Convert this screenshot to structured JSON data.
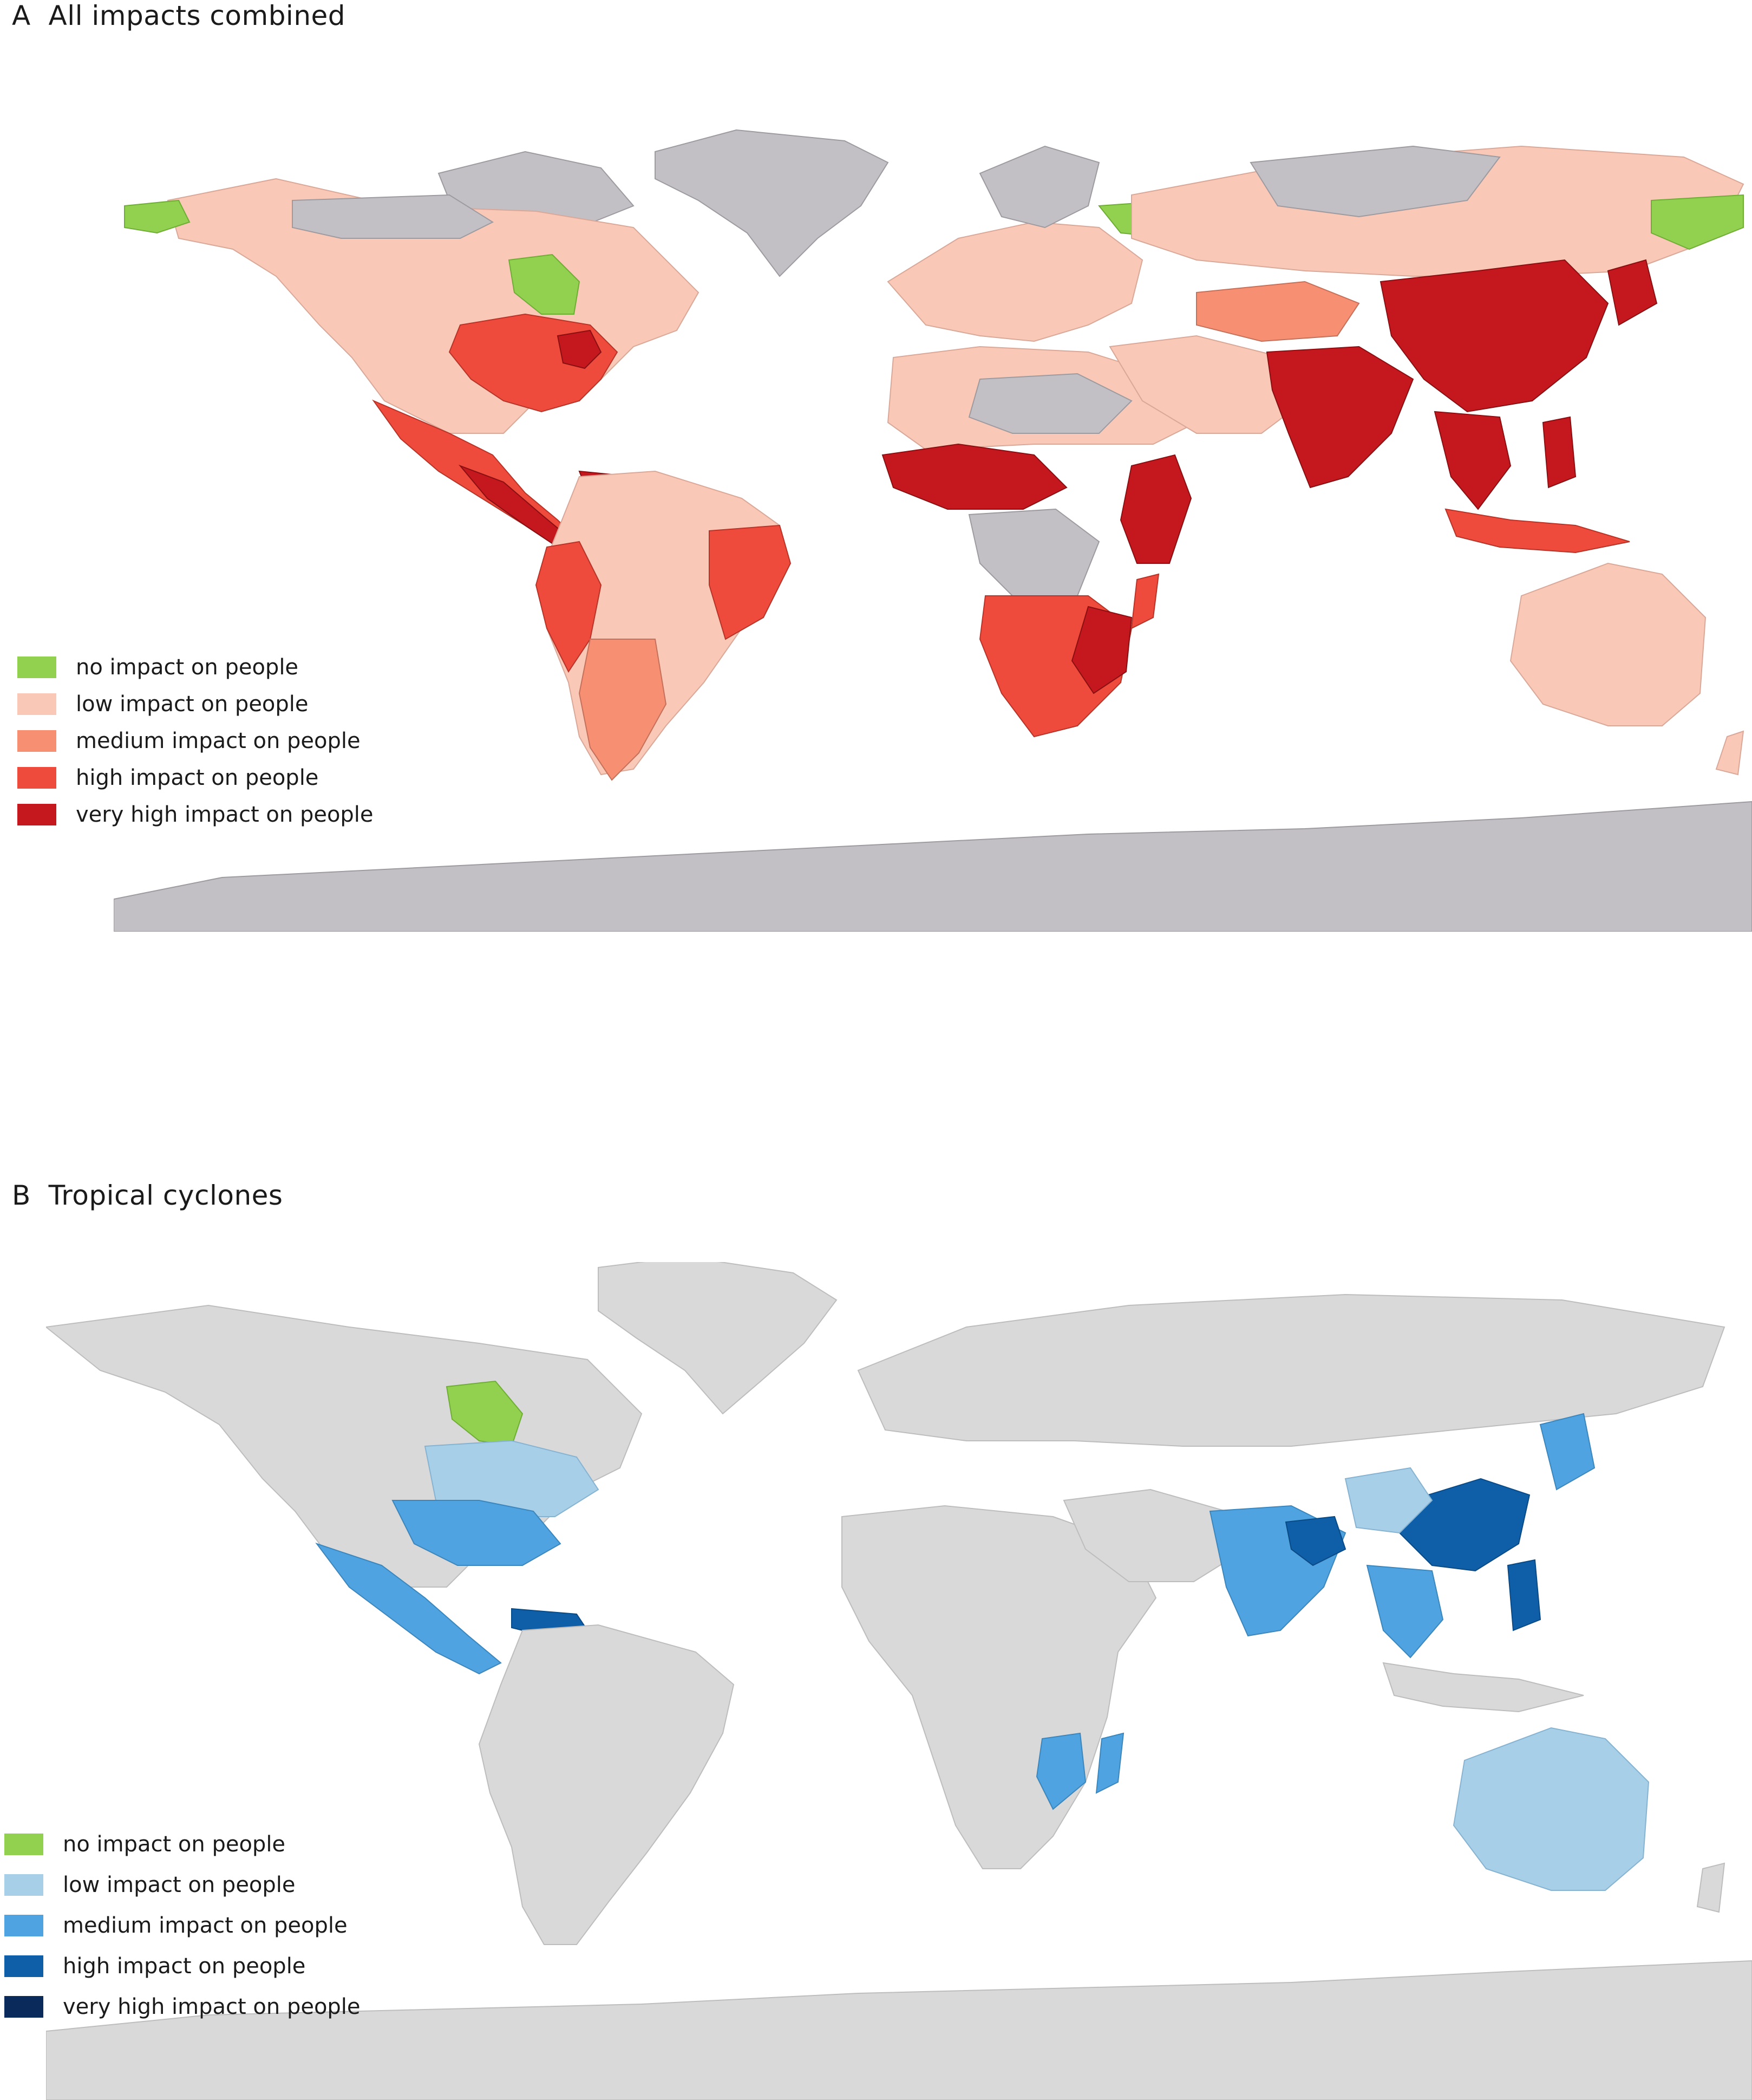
{
  "panels": [
    {
      "letter": "A",
      "title": "All impacts combined",
      "legend": [
        {
          "label": "no impact on people",
          "color": "#92d050"
        },
        {
          "label": "low impact on people",
          "color": "#f9c8b6"
        },
        {
          "label": "medium impact on people",
          "color": "#f78f72"
        },
        {
          "label": "high impact on people",
          "color": "#ef4b3c"
        },
        {
          "label": "very high impact on people",
          "color": "#c5181e"
        }
      ],
      "no_data_color": "#c3c0c5"
    },
    {
      "letter": "B",
      "title": "Tropical cyclones",
      "legend": [
        {
          "label": "no impact on people",
          "color": "#92d050"
        },
        {
          "label": "low impact on people",
          "color": "#a8cfe8"
        },
        {
          "label": "medium impact on people",
          "color": "#4fa3e0"
        },
        {
          "label": "high impact on people",
          "color": "#0e5ea8"
        },
        {
          "label": "very high impact on people",
          "color": "#0b2a5c"
        }
      ],
      "no_data_color": "#d9d9d9"
    }
  ]
}
